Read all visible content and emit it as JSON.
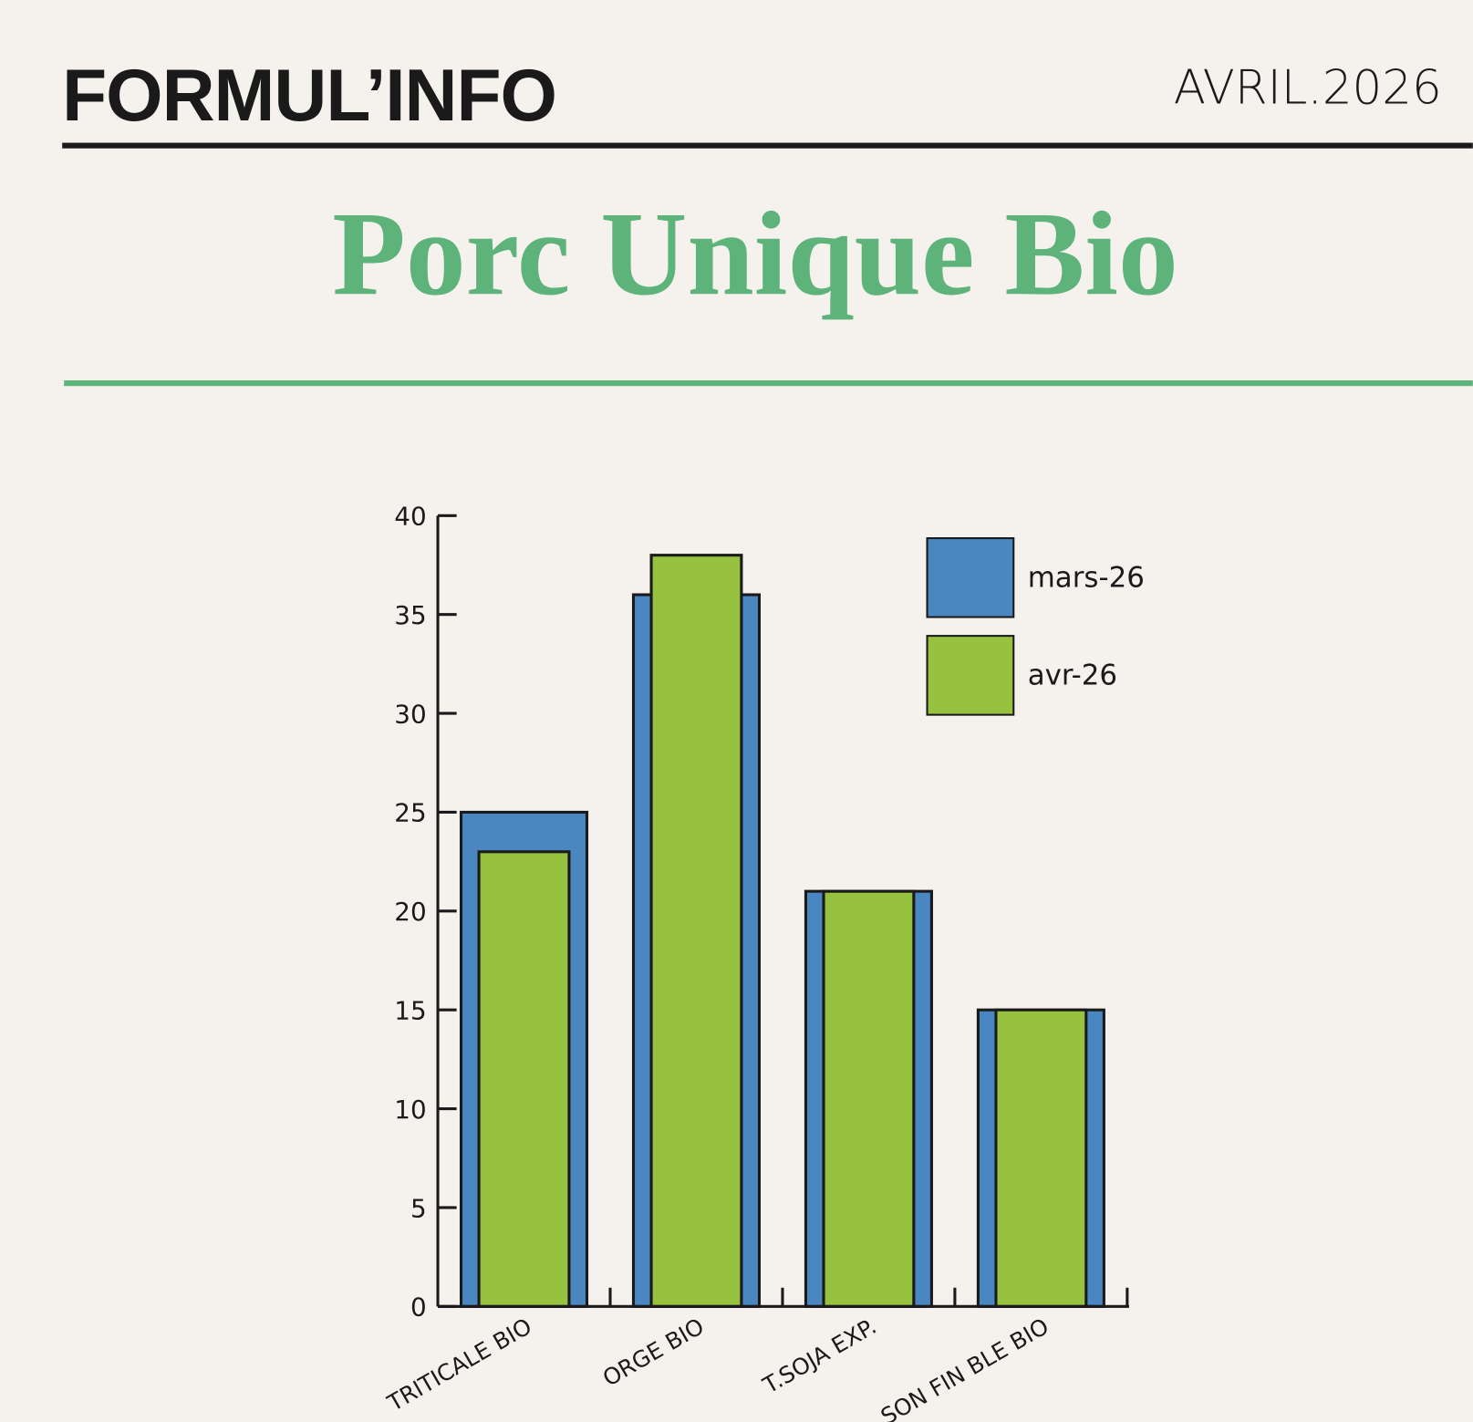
{
  "header": {
    "brand": "FORMUL’INFO",
    "date": "AVRIL.2026"
  },
  "chart_data": {
    "type": "overlap_bar",
    "title": "Porc Unique Bio",
    "categories": [
      "TRITICALE BIO",
      "ORGE BIO",
      "T.SOJA EXP.",
      "SON FIN BLE BIO"
    ],
    "series": [
      {
        "name": "mars-26",
        "color": "#4a86bf",
        "values": [
          25,
          36,
          21,
          15
        ]
      },
      {
        "name": "avr-26",
        "color": "#97c23f",
        "values": [
          23,
          38,
          21,
          15
        ]
      }
    ],
    "ylim": [
      0,
      40
    ],
    "yticks": [
      0,
      5,
      10,
      15,
      20,
      25,
      30,
      35,
      40
    ],
    "legend": "upper right",
    "grid": false
  }
}
